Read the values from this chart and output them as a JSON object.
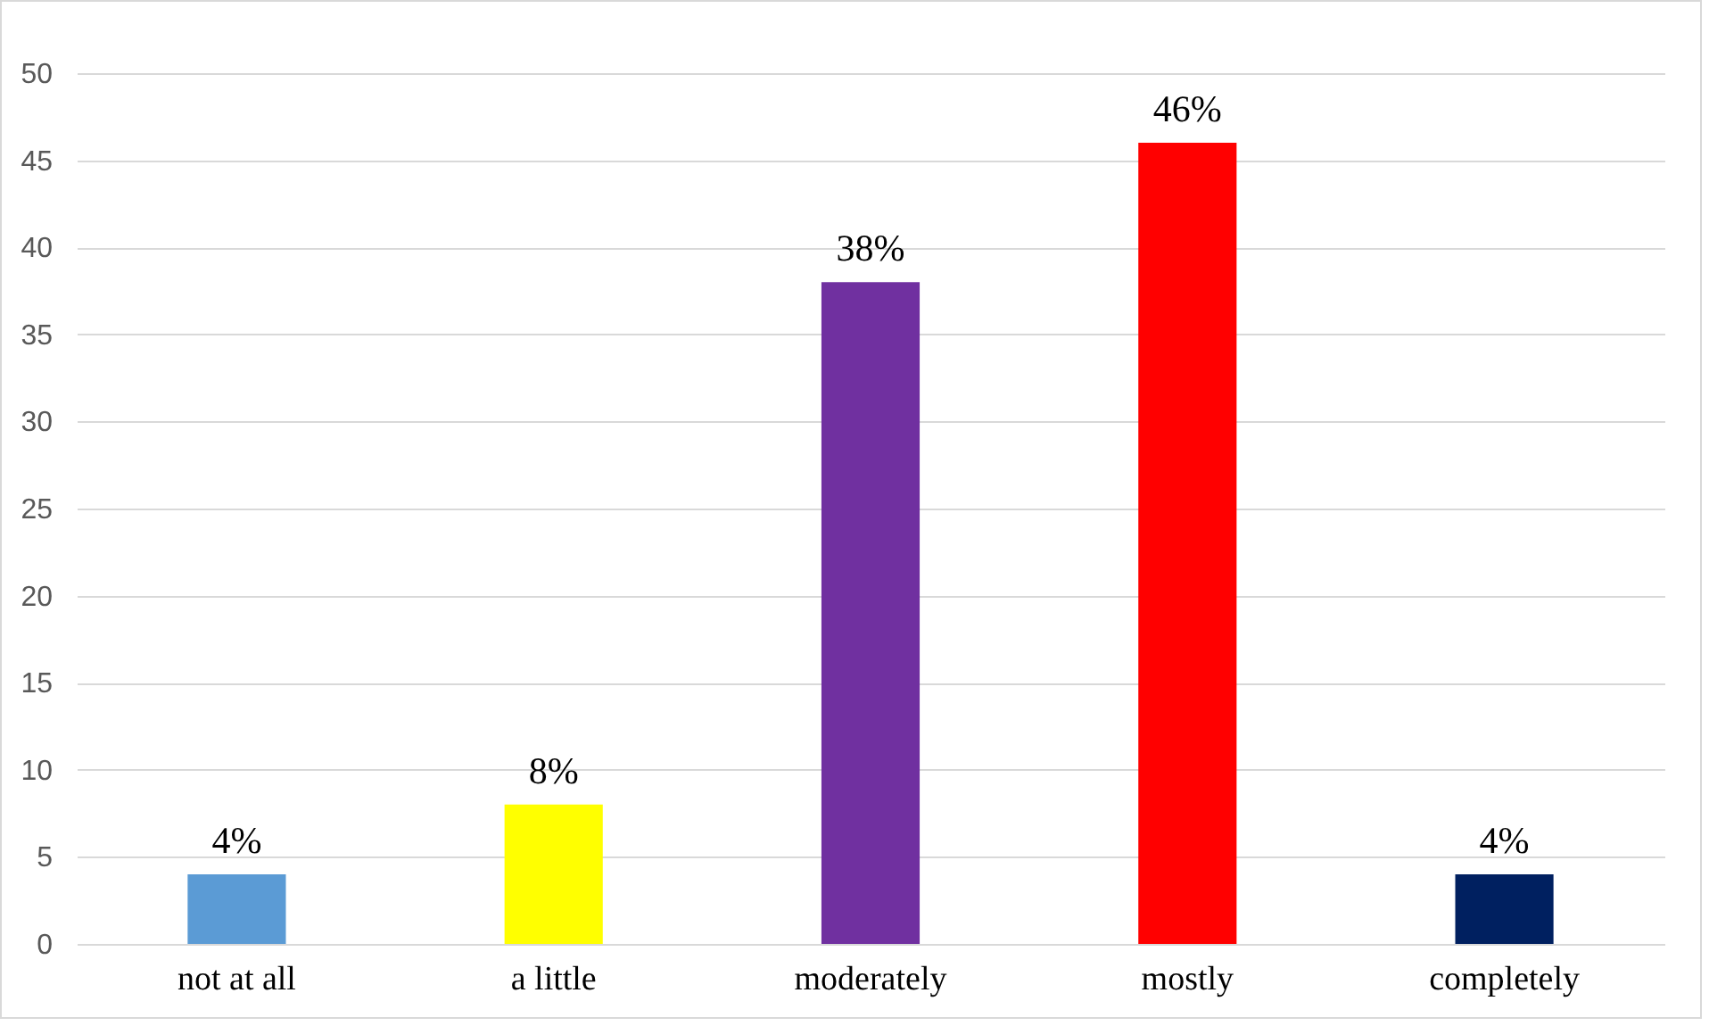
{
  "chart_data": {
    "type": "bar",
    "categories": [
      "not at all",
      "a little",
      "moderately",
      "mostly",
      "completely"
    ],
    "values": [
      4,
      8,
      38,
      46,
      4
    ],
    "colors": [
      "#5b9bd5",
      "#ffff00",
      "#7030a0",
      "#ff0000",
      "#002060"
    ],
    "value_labels": [
      "4%",
      "8%",
      "38%",
      "46%",
      "4%"
    ],
    "ylim": [
      0,
      50
    ],
    "yticks": [
      0,
      5,
      10,
      15,
      20,
      25,
      30,
      35,
      40,
      45,
      50
    ],
    "grid": "y",
    "legend": false
  }
}
